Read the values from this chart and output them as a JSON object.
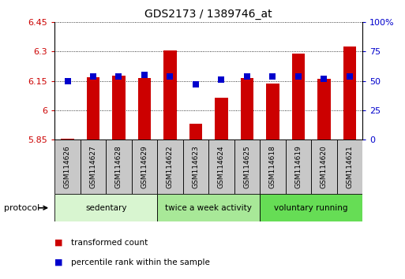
{
  "title": "GDS2173 / 1389746_at",
  "samples": [
    "GSM114626",
    "GSM114627",
    "GSM114628",
    "GSM114629",
    "GSM114622",
    "GSM114623",
    "GSM114624",
    "GSM114625",
    "GSM114618",
    "GSM114619",
    "GSM114620",
    "GSM114621"
  ],
  "transformed_count": [
    5.855,
    6.17,
    6.175,
    6.165,
    6.305,
    5.93,
    6.065,
    6.165,
    6.135,
    6.29,
    6.16,
    6.325
  ],
  "percentile_rank": [
    50,
    54,
    54,
    55,
    54,
    47,
    51,
    54,
    54,
    54,
    52,
    54
  ],
  "ylim_left": [
    5.85,
    6.45
  ],
  "ylim_right": [
    0,
    100
  ],
  "yticks_left": [
    5.85,
    6.0,
    6.15,
    6.3,
    6.45
  ],
  "ytick_labels_left": [
    "5.85",
    "6",
    "6.15",
    "6.3",
    "6.45"
  ],
  "yticks_right": [
    0,
    25,
    50,
    75,
    100
  ],
  "ytick_labels_right": [
    "0",
    "25",
    "50",
    "75",
    "100%"
  ],
  "groups": [
    {
      "label": "sedentary",
      "start": 0,
      "end": 4,
      "color": "#d8f5d0"
    },
    {
      "label": "twice a week activity",
      "start": 4,
      "end": 8,
      "color": "#a8e898"
    },
    {
      "label": "voluntary running",
      "start": 8,
      "end": 12,
      "color": "#66dd55"
    }
  ],
  "bar_color": "#cc0000",
  "dot_color": "#0000cc",
  "bar_width": 0.5,
  "dot_size": 30,
  "protocol_label": "protocol",
  "legend_items": [
    {
      "color": "#cc0000",
      "label": "transformed count"
    },
    {
      "color": "#0000cc",
      "label": "percentile rank within the sample"
    }
  ]
}
